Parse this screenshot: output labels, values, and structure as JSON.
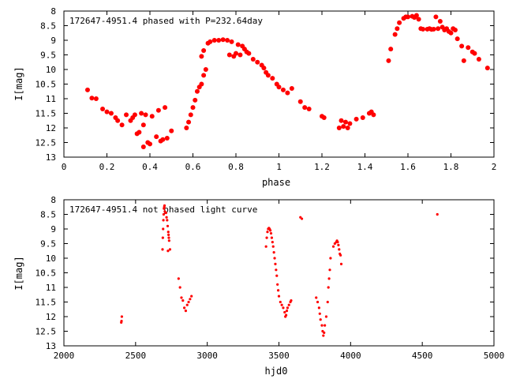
{
  "chart_data": [
    {
      "type": "scatter",
      "title": "172647-4951.4 phased with P=232.64day",
      "xlabel": "phase",
      "ylabel": "I[mag]",
      "xlim": [
        0,
        2
      ],
      "ylim": [
        13,
        8
      ],
      "y_inverted": true,
      "xticks": [
        "0",
        "0.2",
        "0.4",
        "0.6",
        "0.8",
        "1",
        "1.2",
        "1.4",
        "1.6",
        "1.8",
        "2"
      ],
      "yticks": [
        "8",
        "8.5",
        "9",
        "9.5",
        "10",
        "10.5",
        "11",
        "11.5",
        "12",
        "12.5",
        "13"
      ],
      "grid": false,
      "legend": "none",
      "marker": "filled-circle",
      "color": "#ff0000",
      "points": [
        [
          0.11,
          10.7
        ],
        [
          0.13,
          10.98
        ],
        [
          0.15,
          11.0
        ],
        [
          0.18,
          11.35
        ],
        [
          0.2,
          11.45
        ],
        [
          0.22,
          11.5
        ],
        [
          0.24,
          11.65
        ],
        [
          0.25,
          11.75
        ],
        [
          0.27,
          11.9
        ],
        [
          0.29,
          11.55
        ],
        [
          0.31,
          11.75
        ],
        [
          0.32,
          11.65
        ],
        [
          0.33,
          11.55
        ],
        [
          0.34,
          12.2
        ],
        [
          0.35,
          12.15
        ],
        [
          0.36,
          11.5
        ],
        [
          0.37,
          11.9
        ],
        [
          0.37,
          12.65
        ],
        [
          0.38,
          11.55
        ],
        [
          0.39,
          12.5
        ],
        [
          0.4,
          12.55
        ],
        [
          0.41,
          11.6
        ],
        [
          0.43,
          12.3
        ],
        [
          0.44,
          11.4
        ],
        [
          0.45,
          12.45
        ],
        [
          0.46,
          12.4
        ],
        [
          0.47,
          11.3
        ],
        [
          0.48,
          12.35
        ],
        [
          0.5,
          12.1
        ],
        [
          0.57,
          12.0
        ],
        [
          0.58,
          11.8
        ],
        [
          0.59,
          11.55
        ],
        [
          0.6,
          11.3
        ],
        [
          0.61,
          11.05
        ],
        [
          0.62,
          10.75
        ],
        [
          0.63,
          10.6
        ],
        [
          0.64,
          10.5
        ],
        [
          0.65,
          10.2
        ],
        [
          0.66,
          10.0
        ],
        [
          0.64,
          9.55
        ],
        [
          0.65,
          9.35
        ],
        [
          0.67,
          9.1
        ],
        [
          0.68,
          9.05
        ],
        [
          0.7,
          9.0
        ],
        [
          0.72,
          9.0
        ],
        [
          0.74,
          8.98
        ],
        [
          0.76,
          9.0
        ],
        [
          0.77,
          9.5
        ],
        [
          0.78,
          9.05
        ],
        [
          0.79,
          9.55
        ],
        [
          0.8,
          9.45
        ],
        [
          0.81,
          9.15
        ],
        [
          0.82,
          9.5
        ],
        [
          0.83,
          9.2
        ],
        [
          0.84,
          9.3
        ],
        [
          0.85,
          9.4
        ],
        [
          0.86,
          9.45
        ],
        [
          0.88,
          9.65
        ],
        [
          0.9,
          9.75
        ],
        [
          0.92,
          9.85
        ],
        [
          0.93,
          9.95
        ],
        [
          0.94,
          10.1
        ],
        [
          0.95,
          10.2
        ],
        [
          0.97,
          10.3
        ],
        [
          0.99,
          10.5
        ],
        [
          1.0,
          10.6
        ],
        [
          1.02,
          10.7
        ],
        [
          1.04,
          10.8
        ],
        [
          1.06,
          10.65
        ],
        [
          1.1,
          11.1
        ],
        [
          1.12,
          11.3
        ],
        [
          1.14,
          11.35
        ],
        [
          1.2,
          11.6
        ],
        [
          1.21,
          11.65
        ],
        [
          1.28,
          12.0
        ],
        [
          1.29,
          11.75
        ],
        [
          1.3,
          11.95
        ],
        [
          1.31,
          11.8
        ],
        [
          1.32,
          12.0
        ],
        [
          1.33,
          11.85
        ],
        [
          1.36,
          11.7
        ],
        [
          1.39,
          11.65
        ],
        [
          1.42,
          11.5
        ],
        [
          1.43,
          11.45
        ],
        [
          1.44,
          11.55
        ],
        [
          1.51,
          9.7
        ],
        [
          1.52,
          9.3
        ],
        [
          1.54,
          8.8
        ],
        [
          1.55,
          8.6
        ],
        [
          1.56,
          8.4
        ],
        [
          1.58,
          8.25
        ],
        [
          1.59,
          8.2
        ],
        [
          1.6,
          8.2
        ],
        [
          1.62,
          8.18
        ],
        [
          1.63,
          8.22
        ],
        [
          1.64,
          8.15
        ],
        [
          1.65,
          8.28
        ],
        [
          1.66,
          8.6
        ],
        [
          1.67,
          8.62
        ],
        [
          1.69,
          8.62
        ],
        [
          1.7,
          8.6
        ],
        [
          1.71,
          8.63
        ],
        [
          1.72,
          8.62
        ],
        [
          1.73,
          8.2
        ],
        [
          1.74,
          8.6
        ],
        [
          1.75,
          8.35
        ],
        [
          1.76,
          8.55
        ],
        [
          1.77,
          8.65
        ],
        [
          1.78,
          8.6
        ],
        [
          1.79,
          8.7
        ],
        [
          1.8,
          8.75
        ],
        [
          1.81,
          8.6
        ],
        [
          1.82,
          8.65
        ],
        [
          1.83,
          8.95
        ],
        [
          1.85,
          9.2
        ],
        [
          1.86,
          9.7
        ],
        [
          1.88,
          9.25
        ],
        [
          1.9,
          9.4
        ],
        [
          1.91,
          9.45
        ],
        [
          1.93,
          9.65
        ],
        [
          1.97,
          9.95
        ]
      ]
    },
    {
      "type": "scatter",
      "title": "172647-4951.4 not phased light curve",
      "xlabel": "hjd0",
      "ylabel": "I[mag]",
      "xlim": [
        2000,
        5000
      ],
      "ylim": [
        13,
        8
      ],
      "y_inverted": true,
      "xticks": [
        "2000",
        "2500",
        "3000",
        "3500",
        "4000",
        "4500",
        "5000"
      ],
      "yticks": [
        "8",
        "8.5",
        "9",
        "9.5",
        "10",
        "10.5",
        "11",
        "11.5",
        "12",
        "12.5",
        "13"
      ],
      "grid": false,
      "legend": "none",
      "marker": "small-dot",
      "color": "#ff0000",
      "points": [
        [
          2400,
          12.2
        ],
        [
          2402,
          12.15
        ],
        [
          2404,
          12.0
        ],
        [
          2688,
          9.7
        ],
        [
          2690,
          9.3
        ],
        [
          2692,
          9.0
        ],
        [
          2694,
          8.7
        ],
        [
          2696,
          8.5
        ],
        [
          2698,
          8.3
        ],
        [
          2700,
          8.25
        ],
        [
          2702,
          8.2
        ],
        [
          2704,
          8.4
        ],
        [
          2712,
          8.45
        ],
        [
          2716,
          8.6
        ],
        [
          2720,
          8.7
        ],
        [
          2724,
          8.9
        ],
        [
          2728,
          9.1
        ],
        [
          2730,
          9.2
        ],
        [
          2732,
          9.3
        ],
        [
          2734,
          9.4
        ],
        [
          2726,
          9.75
        ],
        [
          2740,
          9.7
        ],
        [
          2800,
          10.7
        ],
        [
          2810,
          11.0
        ],
        [
          2820,
          11.35
        ],
        [
          2830,
          11.45
        ],
        [
          2840,
          11.7
        ],
        [
          2850,
          11.8
        ],
        [
          2860,
          11.6
        ],
        [
          2870,
          11.5
        ],
        [
          2880,
          11.4
        ],
        [
          2890,
          11.3
        ],
        [
          3410,
          9.6
        ],
        [
          3415,
          9.3
        ],
        [
          3420,
          9.1
        ],
        [
          3425,
          9.0
        ],
        [
          3430,
          8.97
        ],
        [
          3435,
          9.0
        ],
        [
          3440,
          9.05
        ],
        [
          3445,
          9.15
        ],
        [
          3450,
          9.3
        ],
        [
          3455,
          9.45
        ],
        [
          3460,
          9.6
        ],
        [
          3465,
          9.8
        ],
        [
          3470,
          10.0
        ],
        [
          3475,
          10.2
        ],
        [
          3480,
          10.4
        ],
        [
          3485,
          10.6
        ],
        [
          3490,
          10.9
        ],
        [
          3495,
          11.1
        ],
        [
          3500,
          11.3
        ],
        [
          3510,
          11.5
        ],
        [
          3520,
          11.6
        ],
        [
          3530,
          11.7
        ],
        [
          3540,
          11.85
        ],
        [
          3545,
          12.0
        ],
        [
          3550,
          11.95
        ],
        [
          3555,
          11.8
        ],
        [
          3560,
          11.7
        ],
        [
          3570,
          11.6
        ],
        [
          3580,
          11.5
        ],
        [
          3585,
          11.45
        ],
        [
          3650,
          8.6
        ],
        [
          3660,
          8.65
        ],
        [
          3760,
          11.35
        ],
        [
          3770,
          11.5
        ],
        [
          3780,
          11.7
        ],
        [
          3785,
          11.9
        ],
        [
          3790,
          12.1
        ],
        [
          3800,
          12.3
        ],
        [
          3805,
          12.5
        ],
        [
          3810,
          12.65
        ],
        [
          3815,
          12.55
        ],
        [
          3820,
          12.3
        ],
        [
          3830,
          12.0
        ],
        [
          3840,
          11.5
        ],
        [
          3845,
          11.0
        ],
        [
          3850,
          10.7
        ],
        [
          3855,
          10.4
        ],
        [
          3860,
          10.0
        ],
        [
          3880,
          9.6
        ],
        [
          3890,
          9.5
        ],
        [
          3900,
          9.45
        ],
        [
          3905,
          9.4
        ],
        [
          3910,
          9.45
        ],
        [
          3915,
          9.55
        ],
        [
          3920,
          9.7
        ],
        [
          3925,
          9.85
        ],
        [
          3930,
          9.9
        ],
        [
          3935,
          10.2
        ],
        [
          4605,
          8.5
        ]
      ]
    }
  ]
}
